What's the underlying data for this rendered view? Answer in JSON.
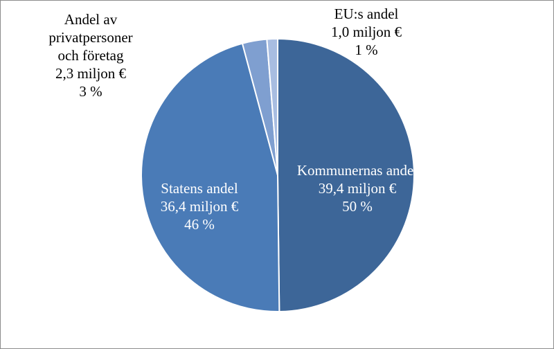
{
  "chart_data": {
    "type": "pie",
    "categories": [
      "Kommunernas andel",
      "Statens andel",
      "Andel av privatpersoner och företag",
      "EU:s andel"
    ],
    "values": [
      39.4,
      36.4,
      2.3,
      1.0
    ],
    "value_labels": [
      "39,4 miljon €",
      "36,4 miljon €",
      "2,3 miljon €",
      "1,0 miljon €"
    ],
    "percentages": [
      50,
      46,
      3,
      1
    ],
    "percentage_labels": [
      "50 %",
      "46 %",
      "3 %",
      "1 %"
    ],
    "colors": [
      "#3d6698",
      "#4a7bb7",
      "#7f9fd0",
      "#a8bde1"
    ]
  }
}
